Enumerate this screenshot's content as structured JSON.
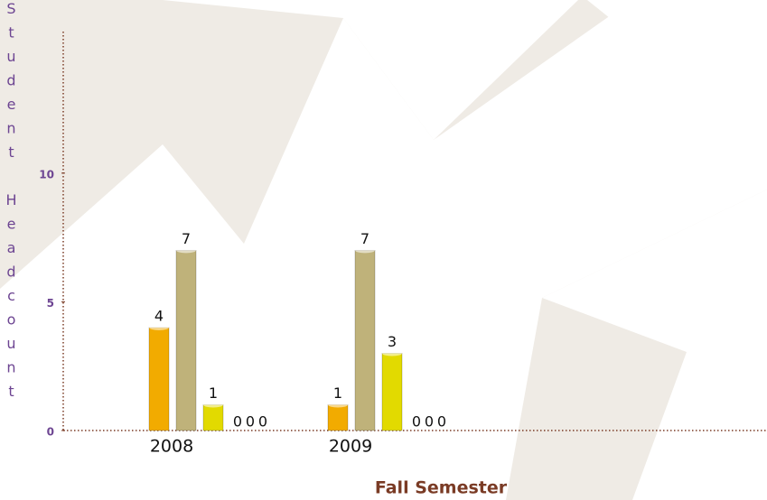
{
  "chart_data": {
    "type": "bar",
    "x_label": "Fall Semester",
    "y_label": "Student Headcount",
    "categories": [
      "2008",
      "2009"
    ],
    "series": [
      {
        "color": "#f2ab00",
        "values": [
          4,
          1
        ]
      },
      {
        "color": "#bfb27a",
        "values": [
          7,
          7
        ]
      },
      {
        "color": "#e2da00",
        "values": [
          1,
          3
        ]
      },
      {
        "color": "#9c7a3c",
        "values": [
          0,
          0
        ]
      },
      {
        "color": "#8a8a5a",
        "values": [
          0,
          0
        ]
      },
      {
        "color": "#c8a060",
        "values": [
          0,
          0
        ]
      }
    ],
    "ylim": [
      0,
      15.5
    ],
    "yticks": [
      0,
      5,
      10
    ]
  }
}
